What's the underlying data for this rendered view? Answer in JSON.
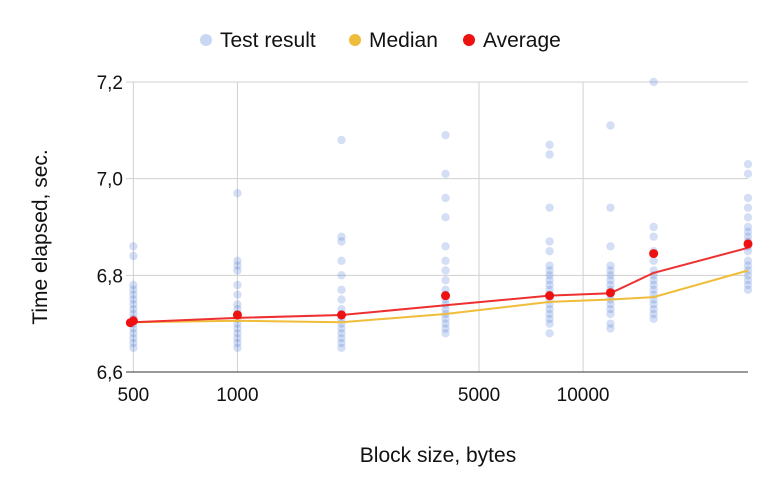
{
  "chart_data": {
    "type": "scatter",
    "title": "",
    "xlabel": "Block size, bytes",
    "ylabel": "Time elapsed, sec.",
    "x_scale": "log",
    "xlim": [
      476,
      30000
    ],
    "ylim": [
      6.6,
      7.2
    ],
    "x_ticks": [
      500,
      1000,
      5000,
      10000
    ],
    "x_tick_labels": [
      "500",
      "1000",
      "5000",
      "10000"
    ],
    "y_ticks": [
      6.6,
      6.8,
      7.0,
      7.2
    ],
    "y_tick_labels": [
      "6,6",
      "6,8",
      "7,0",
      "7,2"
    ],
    "grid": true,
    "legend_position": "top-center",
    "legend": [
      {
        "name": "Test result",
        "color": "#c8d8f2",
        "shape": "circle"
      },
      {
        "name": "Median",
        "color": "#f0bd3a",
        "shape": "circle"
      },
      {
        "name": "Average",
        "color": "#ee1111",
        "shape": "circle"
      }
    ],
    "colors": {
      "test_result": "#3d6fd0",
      "median": "#f0bd3a",
      "average": "#ee3030",
      "average_marker": "#ee1111"
    },
    "series": [
      {
        "name": "Test result",
        "points": [
          {
            "x": 500,
            "y": [
              6.65,
              6.66,
              6.67,
              6.68,
              6.69,
              6.7,
              6.71,
              6.72,
              6.73,
              6.74,
              6.75,
              6.76,
              6.77,
              6.78,
              6.84,
              6.86
            ]
          },
          {
            "x": 1000,
            "y": [
              6.65,
              6.66,
              6.67,
              6.68,
              6.69,
              6.7,
              6.71,
              6.72,
              6.73,
              6.74,
              6.76,
              6.78,
              6.81,
              6.82,
              6.83,
              6.97
            ]
          },
          {
            "x": 2000,
            "y": [
              6.65,
              6.66,
              6.67,
              6.68,
              6.69,
              6.7,
              6.71,
              6.72,
              6.73,
              6.75,
              6.77,
              6.8,
              6.83,
              6.87,
              6.88,
              7.08
            ]
          },
          {
            "x": 4000,
            "y": [
              6.68,
              6.69,
              6.7,
              6.71,
              6.72,
              6.73,
              6.74,
              6.75,
              6.76,
              6.77,
              6.79,
              6.81,
              6.83,
              6.86,
              6.92,
              6.96,
              7.01,
              7.09
            ]
          },
          {
            "x": 8000,
            "y": [
              6.68,
              6.7,
              6.71,
              6.72,
              6.73,
              6.74,
              6.75,
              6.76,
              6.77,
              6.78,
              6.79,
              6.8,
              6.81,
              6.82,
              6.85,
              6.87,
              6.94,
              7.05,
              7.07
            ]
          },
          {
            "x": 12000,
            "y": [
              6.69,
              6.7,
              6.72,
              6.73,
              6.74,
              6.75,
              6.76,
              6.77,
              6.78,
              6.79,
              6.8,
              6.81,
              6.82,
              6.86,
              6.94,
              7.11
            ]
          },
          {
            "x": 16000,
            "y": [
              6.71,
              6.72,
              6.73,
              6.74,
              6.75,
              6.76,
              6.77,
              6.78,
              6.79,
              6.8,
              6.81,
              6.83,
              6.85,
              6.88,
              6.9,
              7.2
            ]
          },
          {
            "x": 30000,
            "y": [
              6.77,
              6.78,
              6.79,
              6.8,
              6.81,
              6.82,
              6.83,
              6.85,
              6.86,
              6.87,
              6.88,
              6.89,
              6.9,
              6.92,
              6.94,
              6.96,
              7.01,
              7.03
            ]
          }
        ]
      },
      {
        "name": "Median",
        "x": [
          500,
          1000,
          2000,
          4000,
          8000,
          12000,
          16000,
          30000
        ],
        "y": [
          6.703,
          6.706,
          6.703,
          6.72,
          6.745,
          6.75,
          6.755,
          6.81
        ]
      },
      {
        "name": "Average",
        "x": [
          500,
          1000,
          2000,
          4000,
          8000,
          12000,
          16000,
          30000
        ],
        "y": [
          6.703,
          6.712,
          6.718,
          6.738,
          6.758,
          6.763,
          6.805,
          6.857
        ],
        "markers": [
          {
            "x": 490,
            "y": 6.702
          },
          {
            "x": 500,
            "y": 6.706
          },
          {
            "x": 1000,
            "y": 6.718
          },
          {
            "x": 2000,
            "y": 6.718
          },
          {
            "x": 4000,
            "y": 6.758
          },
          {
            "x": 8000,
            "y": 6.758
          },
          {
            "x": 12000,
            "y": 6.764
          },
          {
            "x": 16000,
            "y": 6.845
          },
          {
            "x": 30000,
            "y": 6.865
          }
        ]
      }
    ]
  }
}
